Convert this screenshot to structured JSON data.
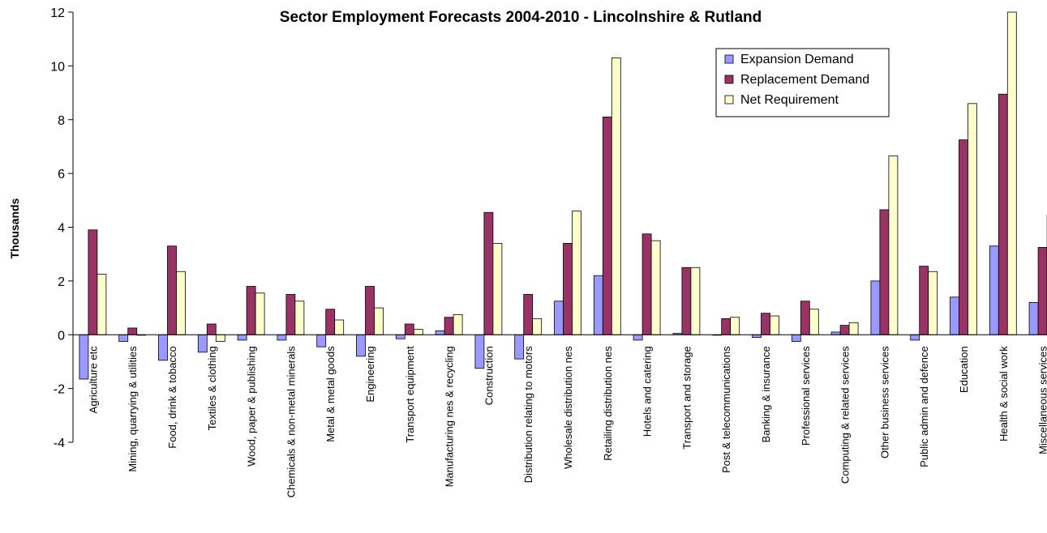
{
  "chart_data": {
    "type": "bar",
    "title": "Sector Employment Forecasts 2004-2010 - Lincolnshire & Rutland",
    "xlabel": "",
    "ylabel": "Thousands",
    "ylim": [
      -4,
      12
    ],
    "yticks": [
      -4,
      -2,
      0,
      2,
      4,
      6,
      8,
      10,
      12
    ],
    "grid": false,
    "legend_position": "top-right",
    "categories": [
      "Agriculture etc",
      "Mining, quarrying & utilities",
      "Food, drink & tobacco",
      "Textiles & clothing",
      "Wood, paper & publishing",
      "Chemicals & non-metal minerals",
      "Metal & metal goods",
      "Engineering",
      "Transport equipment",
      "Manufacturing nes & recycling",
      "Construction",
      "Distribution relating to motors",
      "Wholesale distribution nes",
      "Retailing distribution nes",
      "Hotels and catering",
      "Transport and storage",
      "Post & telecommunications",
      "Banking & insurance",
      "Professional services",
      "Computing & related services",
      "Other business services",
      "Public admin and defence",
      "Education",
      "Health & social work",
      "Miscellaneous services"
    ],
    "series": [
      {
        "name": "Expansion Demand",
        "color": "#9999ff",
        "values": [
          -1.65,
          -0.25,
          -0.95,
          -0.65,
          -0.2,
          -0.2,
          -0.45,
          -0.8,
          -0.15,
          0.15,
          -1.25,
          -0.9,
          1.25,
          2.2,
          -0.2,
          0.05,
          0.0,
          -0.1,
          -0.25,
          0.1,
          2.0,
          -0.2,
          1.4,
          3.3,
          1.2
        ]
      },
      {
        "name": "Replacement Demand",
        "color": "#993366",
        "values": [
          3.9,
          0.25,
          3.3,
          0.4,
          1.8,
          1.5,
          0.95,
          1.8,
          0.4,
          0.65,
          4.55,
          1.5,
          3.4,
          8.1,
          3.75,
          2.5,
          0.6,
          0.8,
          1.25,
          0.35,
          4.65,
          2.55,
          7.25,
          8.95,
          3.25
        ]
      },
      {
        "name": "Net Requirement",
        "color": "#ffffcc",
        "values": [
          2.25,
          0.0,
          2.35,
          -0.25,
          1.55,
          1.25,
          0.55,
          1.0,
          0.2,
          0.75,
          3.4,
          0.6,
          4.6,
          10.3,
          3.5,
          2.5,
          0.65,
          0.7,
          0.95,
          0.45,
          6.65,
          2.35,
          8.6,
          12.0,
          4.45
        ]
      }
    ]
  }
}
